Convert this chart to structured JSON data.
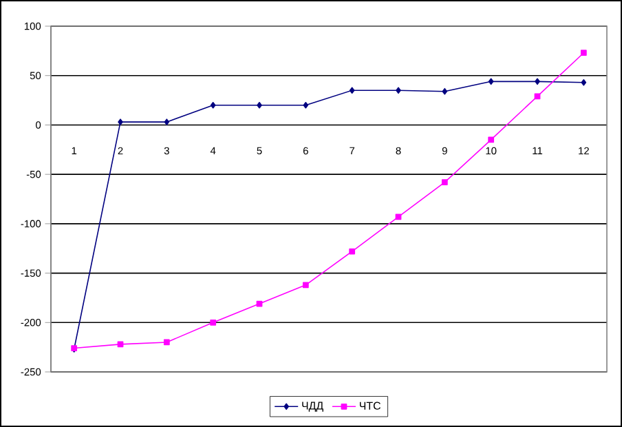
{
  "chart_data": {
    "type": "line",
    "categories": [
      "1",
      "2",
      "3",
      "4",
      "5",
      "6",
      "7",
      "8",
      "9",
      "10",
      "11",
      "12"
    ],
    "series": [
      {
        "name": "ЧДД",
        "color": "#000080",
        "marker": "diamond",
        "values": [
          -227,
          3,
          3,
          20,
          20,
          20,
          35,
          35,
          34,
          44,
          44,
          43
        ]
      },
      {
        "name": "ЧТС",
        "color": "#ff00ff",
        "marker": "square",
        "values": [
          -226,
          -222,
          -220,
          -200,
          -181,
          -162,
          -128,
          -93,
          -58,
          -15,
          29,
          73
        ]
      }
    ],
    "ylim": [
      -250,
      100
    ],
    "yticks": [
      -250,
      -200,
      -150,
      -100,
      -50,
      0,
      50,
      100
    ],
    "grid": "y",
    "legend": "bottom"
  }
}
